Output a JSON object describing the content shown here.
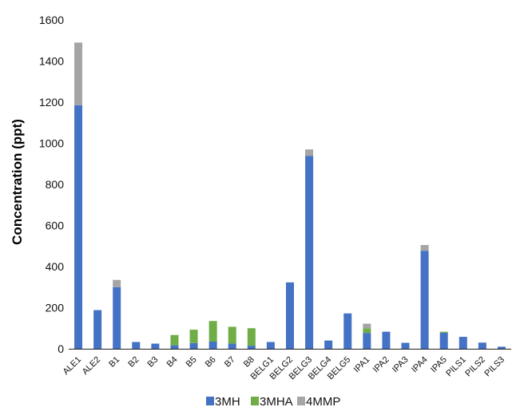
{
  "chart_data": {
    "type": "bar",
    "stacked": true,
    "ylabel": "Concentration (ppt)",
    "xlabel": "",
    "ylim": [
      0,
      1600
    ],
    "yticks": [
      0,
      200,
      400,
      600,
      800,
      1000,
      1200,
      1400,
      1600
    ],
    "grid": false,
    "legend_position": "bottom",
    "categories": [
      "ALE1",
      "ALE2",
      "B1",
      "B2",
      "B3",
      "B4",
      "B5",
      "B6",
      "B7",
      "B8",
      "BELG1",
      "BELG2",
      "BELG3",
      "BELG4",
      "BELG5",
      "IPA1",
      "IPA2",
      "IPA3",
      "IPA4",
      "IPA5",
      "PILS1",
      "PILS2",
      "PILS3"
    ],
    "series": [
      {
        "name": "3MH",
        "color": "#4472C4",
        "values": [
          1185,
          188,
          300,
          33,
          25,
          17,
          28,
          35,
          25,
          15,
          33,
          323,
          938,
          40,
          172,
          77,
          83,
          29,
          477,
          78,
          58,
          30,
          10
        ]
      },
      {
        "name": "3MHA",
        "color": "#70AD47",
        "values": [
          0,
          0,
          0,
          0,
          0,
          50,
          65,
          100,
          82,
          85,
          0,
          0,
          0,
          0,
          0,
          23,
          0,
          0,
          0,
          5,
          0,
          0,
          0
        ]
      },
      {
        "name": "4MMP",
        "color": "#A5A5A5",
        "values": [
          305,
          0,
          35,
          0,
          0,
          0,
          0,
          0,
          0,
          0,
          0,
          0,
          32,
          0,
          0,
          22,
          0,
          0,
          28,
          0,
          0,
          0,
          0
        ]
      }
    ]
  }
}
